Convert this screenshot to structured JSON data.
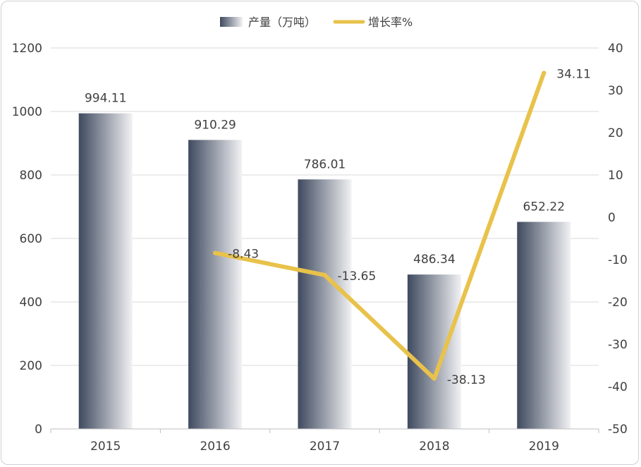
{
  "chart_data": {
    "type": "bar+line",
    "title": "",
    "categories": [
      "2015",
      "2016",
      "2017",
      "2018",
      "2019"
    ],
    "series": [
      {
        "name": "产量（万吨）",
        "type": "bar",
        "axis": "left",
        "values": [
          994.11,
          910.29,
          786.01,
          486.34,
          652.22
        ],
        "labels": [
          "994.11",
          "910.29",
          "786.01",
          "486.34",
          "652.22"
        ],
        "color_dark": "#3f4a5f",
        "color_light": "#f2f2f4"
      },
      {
        "name": "增长率%",
        "type": "line",
        "axis": "right",
        "values": [
          null,
          -8.43,
          -13.65,
          -38.13,
          34.11
        ],
        "labels": [
          "",
          "-8.43",
          "-13.65",
          "-38.13",
          "34.11"
        ],
        "color": "#e8c24b"
      }
    ],
    "y_left": {
      "min": 0,
      "max": 1200,
      "ticks": [
        "0",
        "200",
        "400",
        "600",
        "800",
        "1000",
        "1200"
      ]
    },
    "y_right": {
      "min": -50,
      "max": 40,
      "ticks": [
        "-50",
        "-40",
        "-30",
        "-20",
        "-10",
        "0",
        "10",
        "20",
        "30",
        "40"
      ]
    },
    "grid": true,
    "legend_position": "top-center"
  }
}
